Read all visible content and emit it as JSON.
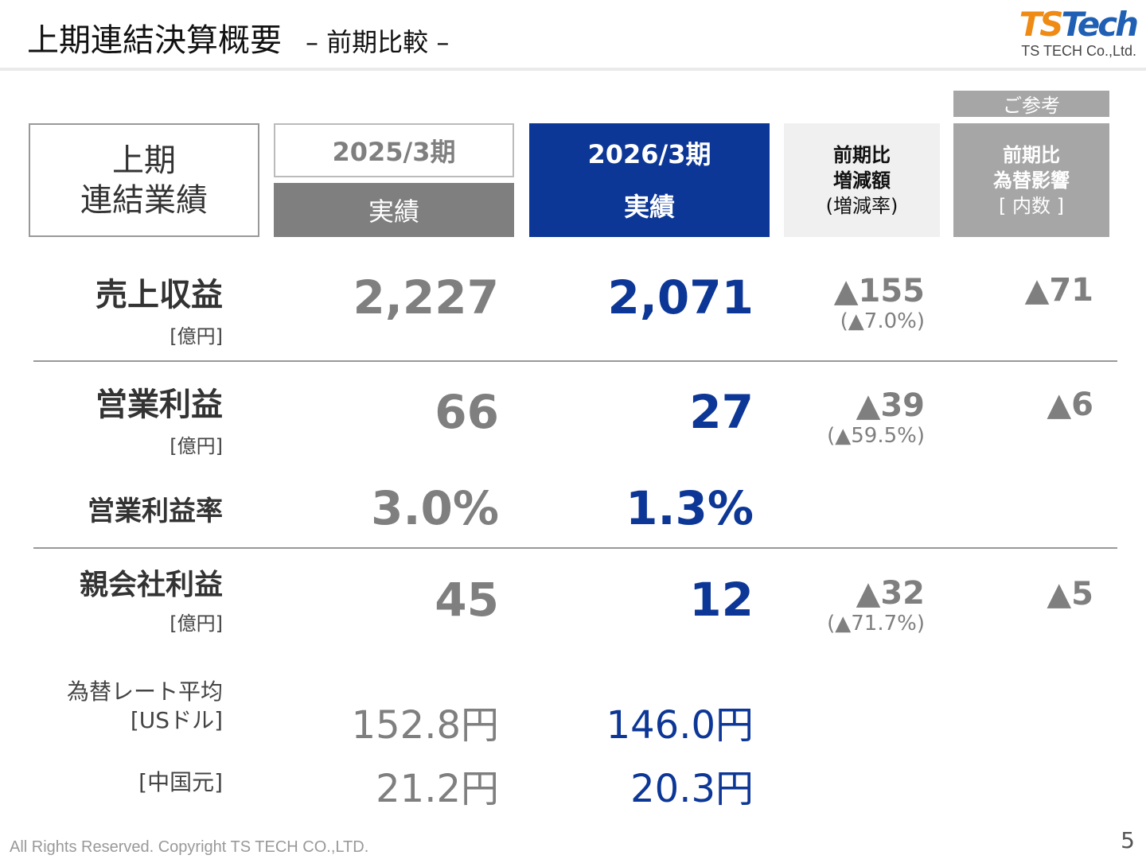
{
  "header": {
    "title": "上期連結決算概要",
    "subtitle": "– 前期比較 –",
    "logo_text": "TS Tech",
    "company": "TS TECH Co.,Ltd."
  },
  "columns": {
    "label": [
      "上期",
      "連結業績"
    ],
    "prev_year": "2025/3期",
    "prev_sub": "実績",
    "curr_year": "2026/3期",
    "curr_sub": "実績",
    "change": [
      "前期比",
      "増減額",
      "(増減率)"
    ],
    "reference_tag": "ご参考",
    "fx_impact": [
      "前期比",
      "為替影響",
      "[ 内数 ]"
    ]
  },
  "rows": [
    {
      "label": "売上収益",
      "unit": "[億円]",
      "prev": "2,227",
      "curr": "2,071",
      "change": "▲155",
      "change_pct": "(▲7.0%)",
      "fx": "▲71"
    },
    {
      "label": "営業利益",
      "unit": "[億円]",
      "prev": "66",
      "curr": "27",
      "change": "▲39",
      "change_pct": "(▲59.5%)",
      "fx": "▲6"
    },
    {
      "label": "営業利益率",
      "prev": "3.0%",
      "curr": "1.3%"
    },
    {
      "label": "親会社利益",
      "unit": "[億円]",
      "prev": "45",
      "curr": "12",
      "change": "▲32",
      "change_pct": "(▲71.7%)",
      "fx": "▲5"
    }
  ],
  "fx_rates": {
    "label": "為替レート平均",
    "usd_label": "[USドル]",
    "usd_prev": "152.8円",
    "usd_curr": "146.0円",
    "cny_label": "[中国元]",
    "cny_prev": "21.2円",
    "cny_curr": "20.3円"
  },
  "footer": {
    "copyright": "All Rights Reserved. Copyright TS TECH CO.,LTD.",
    "page": "5"
  },
  "colors": {
    "accent_blue": "#0d3796",
    "gray": "#7f7f7f",
    "logo_orange": "#ef8a14",
    "logo_blue": "#1f5fb4"
  }
}
